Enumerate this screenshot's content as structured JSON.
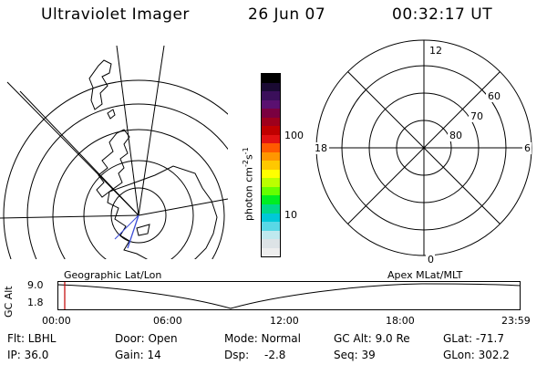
{
  "header": {
    "instrument": "Ultraviolet Imager",
    "date": "26 Jun 07",
    "time": "00:32:17 UT"
  },
  "geo_map": {
    "caption": "Geographic Lat/Lon"
  },
  "colorbar": {
    "label": "photon cm",
    "exp1": "-2",
    "mid": "s",
    "exp2": "-1",
    "ticks": [
      "100",
      "10"
    ],
    "colors": [
      "#000000",
      "#1a0a33",
      "#3a0f5a",
      "#5a1070",
      "#7a0040",
      "#9e001c",
      "#c00000",
      "#e21212",
      "#ff5a00",
      "#ff9600",
      "#ffc800",
      "#ffff00",
      "#bbff00",
      "#66ff00",
      "#00ee22",
      "#00d88a",
      "#00c8d8",
      "#59d8e6",
      "#bfe9ef",
      "#dde3e6",
      "#eeeeee"
    ]
  },
  "polar_plot": {
    "caption": "Apex MLat/MLT",
    "mlt_labels": {
      "top": "12",
      "left": "18",
      "right": "6",
      "bottom": "0"
    },
    "lat_labels": [
      "60",
      "70",
      "80"
    ]
  },
  "timeline": {
    "y_label": "GC Alt",
    "y_ticks": [
      "9.0",
      "1.8"
    ],
    "x_ticks": [
      "00:00",
      "06:00",
      "12:00",
      "18:00",
      "23:59"
    ]
  },
  "info": {
    "row1": {
      "filter": "Flt: LBHL",
      "door": "Door: Open",
      "mode": "Mode: Normal",
      "gc_alt": "GC Alt: 9.0 Re",
      "glat": "GLat: -71.7"
    },
    "row2": {
      "ip": "IP: 36.0",
      "gain": "Gain: 14",
      "dsp_label": "Dsp:",
      "dsp_value": "-2.8",
      "seq": "Seq: 39",
      "glon": "GLon: 302.2"
    }
  }
}
